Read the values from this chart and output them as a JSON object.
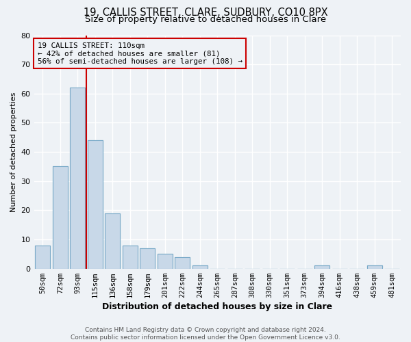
{
  "title1": "19, CALLIS STREET, CLARE, SUDBURY, CO10 8PX",
  "title2": "Size of property relative to detached houses in Clare",
  "xlabel": "Distribution of detached houses by size in Clare",
  "ylabel": "Number of detached properties",
  "bin_labels": [
    "50sqm",
    "72sqm",
    "93sqm",
    "115sqm",
    "136sqm",
    "158sqm",
    "179sqm",
    "201sqm",
    "222sqm",
    "244sqm",
    "265sqm",
    "287sqm",
    "308sqm",
    "330sqm",
    "351sqm",
    "373sqm",
    "394sqm",
    "416sqm",
    "438sqm",
    "459sqm",
    "481sqm"
  ],
  "bar_values": [
    8,
    35,
    62,
    44,
    19,
    8,
    7,
    5,
    4,
    1,
    0,
    0,
    0,
    0,
    0,
    0,
    1,
    0,
    0,
    1,
    0
  ],
  "bar_color": "#c8d8e8",
  "bar_edge_color": "#7aaac8",
  "property_line_color": "#cc0000",
  "property_line_bin": 3,
  "ylim": [
    0,
    80
  ],
  "yticks": [
    0,
    10,
    20,
    30,
    40,
    50,
    60,
    70,
    80
  ],
  "annotation_title": "19 CALLIS STREET: 110sqm",
  "annotation_line1": "← 42% of detached houses are smaller (81)",
  "annotation_line2": "56% of semi-detached houses are larger (108) →",
  "annotation_box_color": "#cc0000",
  "footer1": "Contains HM Land Registry data © Crown copyright and database right 2024.",
  "footer2": "Contains public sector information licensed under the Open Government Licence v3.0.",
  "bg_color": "#eef2f6",
  "grid_color": "#ffffff",
  "title_fontsize": 10.5,
  "subtitle_fontsize": 9.5,
  "xlabel_fontsize": 9,
  "ylabel_fontsize": 8,
  "tick_fontsize": 7.5,
  "annot_fontsize": 7.8,
  "footer_fontsize": 6.5
}
